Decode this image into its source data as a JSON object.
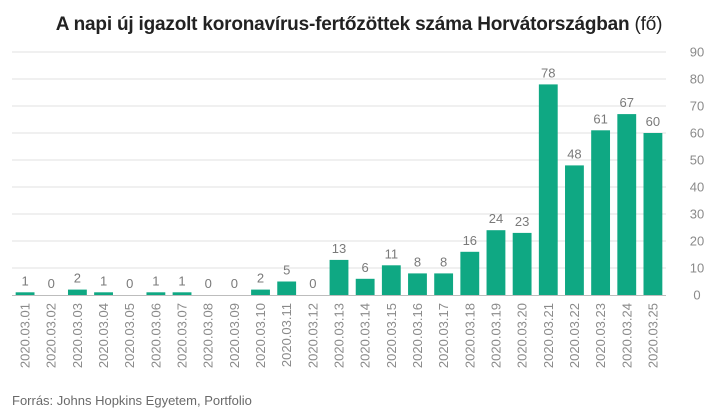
{
  "colors": {
    "bar": "#0fa883",
    "grid": "#e0e0e0",
    "axis": "#bdbdbd",
    "text": "#8a8a8a"
  },
  "chart_data": {
    "type": "bar",
    "title": "A napi új igazolt koronavírus-fertőzöttek száma Horvátországban",
    "title_unit": "(fő)",
    "source": "Forrás: Johns Hopkins Egyetem, Portfolio",
    "categories": [
      "2020.03.01",
      "2020.03.02",
      "2020.03.03",
      "2020.03.04",
      "2020.03.05",
      "2020.03.06",
      "2020.03.07",
      "2020.03.08",
      "2020.03.09",
      "2020.03.10",
      "2020.03.11",
      "2020.03.12",
      "2020.03.13",
      "2020.03.14",
      "2020.03.15",
      "2020.03.16",
      "2020.03.17",
      "2020.03.18",
      "2020.03.19",
      "2020.03.20",
      "2020.03.21",
      "2020.03.22",
      "2020.03.23",
      "2020.03.24",
      "2020.03.25"
    ],
    "values": [
      1,
      0,
      2,
      1,
      0,
      1,
      1,
      0,
      0,
      2,
      5,
      0,
      13,
      6,
      11,
      8,
      8,
      16,
      24,
      23,
      78,
      48,
      61,
      67,
      60
    ],
    "ylim": [
      0,
      90
    ],
    "yticks": [
      0,
      10,
      20,
      30,
      40,
      50,
      60,
      70,
      80,
      90
    ],
    "y_axis_side": "right",
    "grid": true,
    "legend": "none"
  }
}
